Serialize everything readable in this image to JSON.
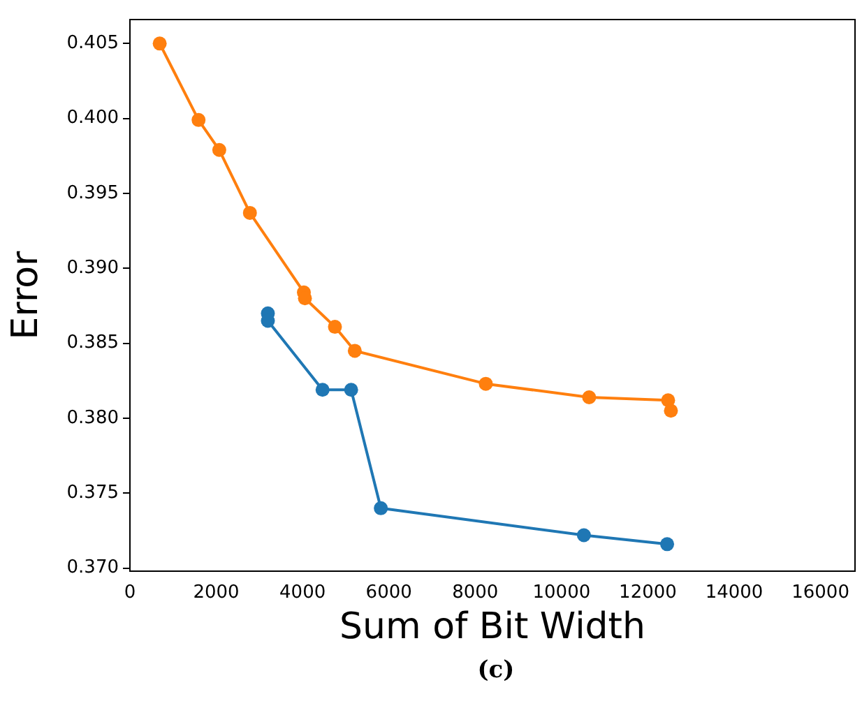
{
  "chart_data": {
    "type": "line",
    "xlabel": "Sum of Bit Width",
    "ylabel": "Error",
    "annotations": [
      "(c)"
    ],
    "series": [
      {
        "color": "#1f77b4",
        "x": [
          3196,
          3196,
          4463,
          5125,
          5813,
          10518,
          12447
        ],
        "values": [
          0.387,
          0.3865,
          0.3819,
          0.3819,
          0.374,
          0.3722,
          0.3716
        ]
      },
      {
        "color": "#ff7f0e",
        "x": [
          690,
          1590,
          2070,
          2780,
          4030,
          4055,
          4750,
          5210,
          8245,
          10640,
          12470,
          12534
        ],
        "values": [
          0.405,
          0.3999,
          0.3979,
          0.3937,
          0.3884,
          0.388,
          0.3861,
          0.3845,
          0.3823,
          0.3814,
          0.3812,
          0.3805
        ]
      }
    ],
    "xlim": [
      0,
      16800
    ],
    "ylim": [
      0.3698,
      0.4066
    ],
    "xticks": [
      0,
      2000,
      4000,
      6000,
      8000,
      10000,
      12000,
      14000,
      16000
    ],
    "yticks": [
      {
        "value": 0.37,
        "label": "0.370"
      },
      0.375,
      {
        "value": 0.38,
        "label": "0.380"
      },
      0.385,
      {
        "value": 0.39,
        "label": "0.390"
      },
      0.395,
      {
        "value": 0.4,
        "label": "0.400"
      },
      0.405
    ],
    "grid": false,
    "legend": false,
    "marker": "circle",
    "line_style": "solid"
  }
}
